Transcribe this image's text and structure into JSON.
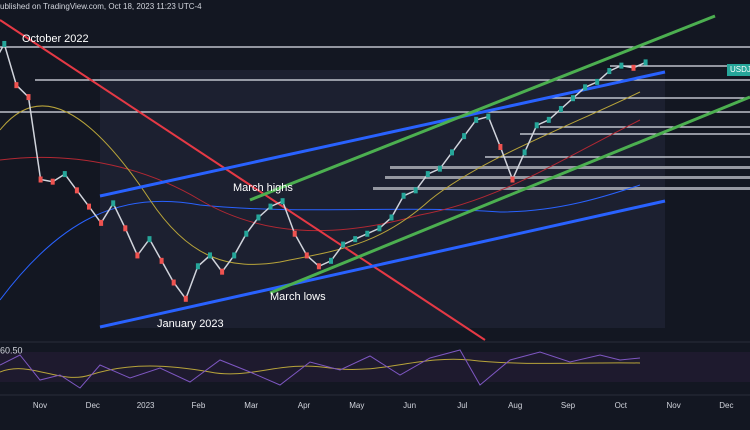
{
  "header": "ublished on TradingView.com, Oct 18, 2023 11:23 UTC-4",
  "annotations": {
    "october_2022": "October 2022",
    "march_highs": "March highs",
    "march_lows": "March lows",
    "january_2023": "January 2023"
  },
  "ticker": "USDJPY",
  "rsi_label": "60.50",
  "time_axis": [
    "Nov",
    "Dec",
    "2023",
    "Feb",
    "Mar",
    "Apr",
    "May",
    "Jun",
    "Jul",
    "Aug",
    "Sep",
    "Oct",
    "Nov",
    "Dec"
  ],
  "chart_data": {
    "type": "line",
    "color": "#d1d4dc",
    "ylim": [
      124.2,
      155
    ],
    "values": [
      147,
      148.5,
      149.5,
      151.5,
      147.7,
      146.6,
      139,
      138.8,
      139.5,
      138,
      136.5,
      135,
      136.8,
      134.5,
      132,
      133.5,
      131.5,
      129.5,
      128,
      131,
      132,
      130.5,
      132,
      134,
      135.5,
      136.5,
      137,
      134,
      132,
      131,
      131.5,
      133,
      133.5,
      134,
      134.5,
      135.5,
      137.5,
      138,
      139.5,
      140,
      141.5,
      143,
      144.5,
      144.8,
      142,
      139,
      141.5,
      144,
      144.5,
      145.5,
      146.5,
      147.5,
      148,
      149,
      149.5,
      149.3,
      149.8
    ]
  }
}
